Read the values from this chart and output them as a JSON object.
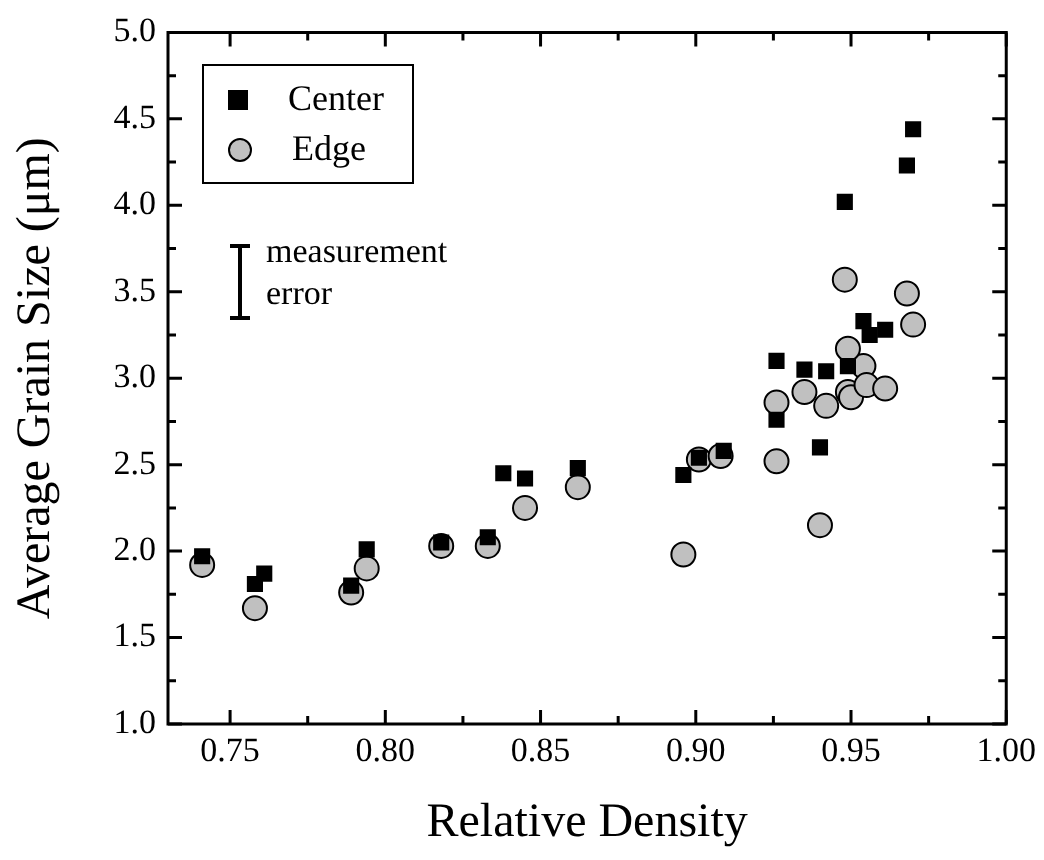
{
  "chart_data": {
    "type": "scatter",
    "xlabel": "Relative Density",
    "ylabel": "Average Grain Size (μm)",
    "xlim": [
      0.73,
      1.0
    ],
    "ylim": [
      1.0,
      5.0
    ],
    "xticks": [
      {
        "value": 0.75,
        "label": "0.75"
      },
      {
        "value": 0.775,
        "label": null
      },
      {
        "value": 0.8,
        "label": "0.80"
      },
      {
        "value": 0.825,
        "label": null
      },
      {
        "value": 0.85,
        "label": "0.85"
      },
      {
        "value": 0.875,
        "label": null
      },
      {
        "value": 0.9,
        "label": "0.90"
      },
      {
        "value": 0.925,
        "label": null
      },
      {
        "value": 0.95,
        "label": "0.95"
      },
      {
        "value": 0.975,
        "label": null
      },
      {
        "value": 1.0,
        "label": "1.00"
      }
    ],
    "yticks": [
      {
        "value": 1.0,
        "label": "1.0"
      },
      {
        "value": 1.25,
        "label": null
      },
      {
        "value": 1.5,
        "label": "1.5"
      },
      {
        "value": 1.75,
        "label": null
      },
      {
        "value": 2.0,
        "label": "2.0"
      },
      {
        "value": 2.25,
        "label": null
      },
      {
        "value": 2.5,
        "label": "2.5"
      },
      {
        "value": 2.75,
        "label": null
      },
      {
        "value": 3.0,
        "label": "3.0"
      },
      {
        "value": 3.25,
        "label": null
      },
      {
        "value": 3.5,
        "label": "3.5"
      },
      {
        "value": 3.75,
        "label": null
      },
      {
        "value": 4.0,
        "label": "4.0"
      },
      {
        "value": 4.25,
        "label": null
      },
      {
        "value": 4.5,
        "label": "4.5"
      },
      {
        "value": 4.75,
        "label": null
      },
      {
        "value": 5.0,
        "label": "5.0"
      }
    ],
    "grid": false,
    "legend": "top left",
    "annotations": [
      "measurement error"
    ],
    "series": [
      {
        "name": "Center",
        "color": "#000000",
        "marker": "square",
        "x": [
          0.741,
          0.758,
          0.761,
          0.789,
          0.794,
          0.818,
          0.833,
          0.838,
          0.845,
          0.862,
          0.896,
          0.901,
          0.909,
          0.926,
          0.926,
          0.935,
          0.94,
          0.942,
          0.949,
          0.948,
          0.954,
          0.956,
          0.961,
          0.968,
          0.97
        ],
        "values": [
          1.97,
          1.81,
          1.87,
          1.8,
          2.01,
          2.05,
          2.08,
          2.45,
          2.42,
          2.48,
          2.44,
          2.54,
          2.58,
          2.76,
          3.1,
          3.05,
          2.6,
          3.04,
          3.07,
          4.02,
          3.33,
          3.25,
          3.28,
          4.23,
          4.44
        ]
      },
      {
        "name": "Edge",
        "color": "#c0c0c0",
        "marker": "circle",
        "x": [
          0.741,
          0.758,
          0.789,
          0.794,
          0.818,
          0.833,
          0.845,
          0.862,
          0.896,
          0.901,
          0.908,
          0.926,
          0.926,
          0.935,
          0.94,
          0.942,
          0.948,
          0.949,
          0.95,
          0.954,
          0.955,
          0.961,
          0.968,
          0.97,
          0.949
        ],
        "values": [
          1.92,
          1.67,
          1.76,
          1.9,
          2.03,
          2.03,
          2.25,
          2.37,
          1.98,
          2.53,
          2.55,
          2.52,
          2.86,
          2.92,
          2.15,
          2.84,
          3.57,
          2.92,
          2.89,
          3.07,
          2.96,
          2.94,
          3.49,
          3.31,
          3.17
        ]
      }
    ]
  }
}
